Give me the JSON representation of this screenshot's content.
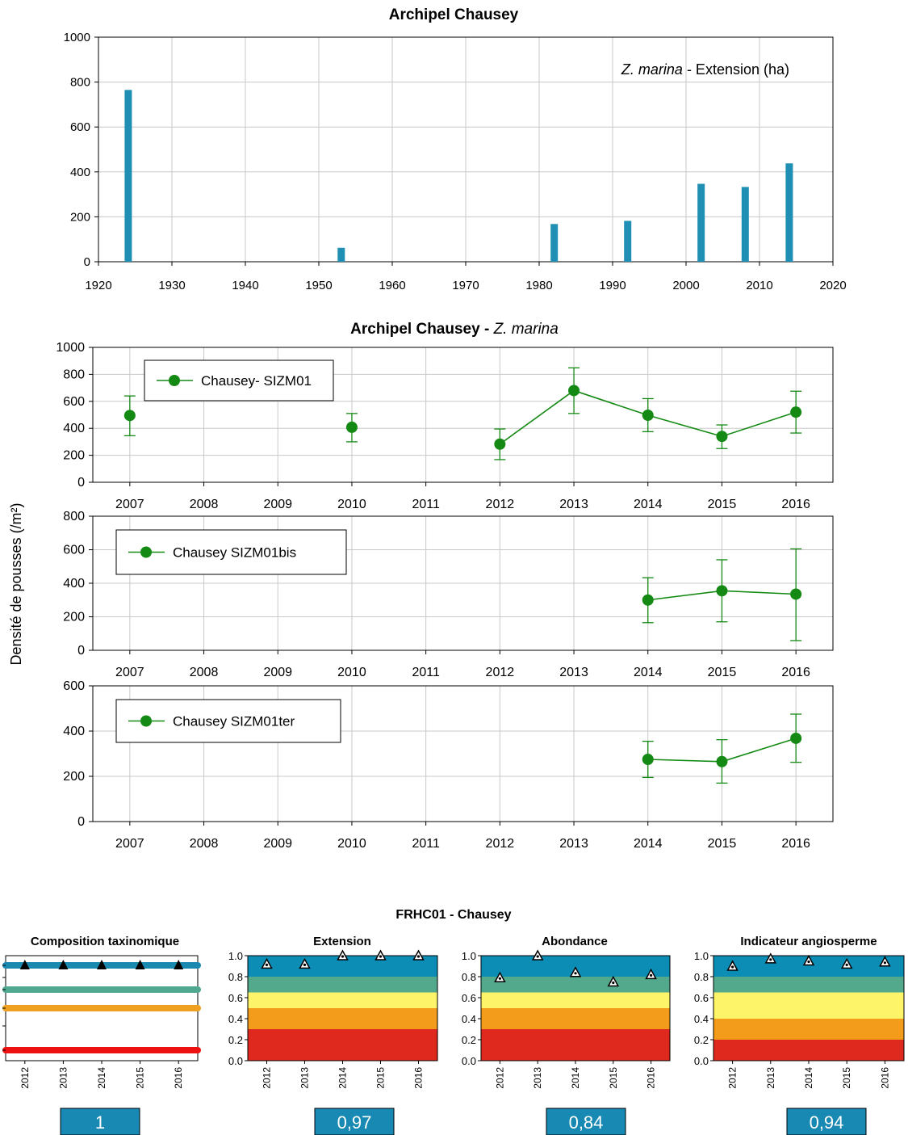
{
  "chart_data": [
    {
      "type": "bar",
      "title": "Archipel Chausey",
      "annotation": {
        "italic": "Z. marina",
        "rest": " - Extension (ha)"
      },
      "x": [
        1924,
        1953,
        1982,
        1992,
        2002,
        2008,
        2014
      ],
      "values": [
        765,
        62,
        168,
        182,
        347,
        333,
        438
      ],
      "xlim": [
        1920,
        2020
      ],
      "xticks": [
        1920,
        1930,
        1940,
        1950,
        1960,
        1970,
        1980,
        1990,
        2000,
        2010,
        2020
      ],
      "ylim": [
        0,
        1000
      ],
      "yticks": [
        0,
        200,
        400,
        600,
        800,
        1000
      ],
      "grid": true,
      "color": "#1f8fb3"
    },
    {
      "type": "line",
      "title_bold": "Archipel Chausey - ",
      "title_italic": "Z. marina",
      "ylabel": "Densité de pousses (/m²)",
      "xticks": [
        2007,
        2008,
        2009,
        2010,
        2011,
        2012,
        2013,
        2014,
        2015,
        2016
      ],
      "color": "#148a14",
      "panels": [
        {
          "legend": "Chausey- SIZM01",
          "legend_position": "top-left",
          "ylim": [
            0,
            1000
          ],
          "yticks": [
            0,
            200,
            400,
            600,
            800,
            1000
          ],
          "points": [
            {
              "x": 2007,
              "y": 495,
              "lo": 345,
              "hi": 640
            },
            {
              "x": 2010,
              "y": 408,
              "lo": 300,
              "hi": 510
            },
            {
              "x": 2012,
              "y": 283,
              "lo": 168,
              "hi": 395
            },
            {
              "x": 2013,
              "y": 680,
              "lo": 510,
              "hi": 848
            },
            {
              "x": 2014,
              "y": 497,
              "lo": 375,
              "hi": 620
            },
            {
              "x": 2015,
              "y": 340,
              "lo": 250,
              "hi": 425
            },
            {
              "x": 2016,
              "y": 520,
              "lo": 365,
              "hi": 675
            }
          ],
          "segments": [
            [
              2,
              3,
              4,
              5,
              6
            ]
          ]
        },
        {
          "legend": "Chausey SIZM01bis",
          "legend_position": "top-left",
          "ylim": [
            0,
            800
          ],
          "yticks": [
            0,
            200,
            400,
            600,
            800
          ],
          "points": [
            {
              "x": 2014,
              "y": 300,
              "lo": 165,
              "hi": 433
            },
            {
              "x": 2015,
              "y": 355,
              "lo": 170,
              "hi": 540
            },
            {
              "x": 2016,
              "y": 335,
              "lo": 58,
              "hi": 605
            }
          ],
          "segments": [
            [
              0,
              1,
              2
            ]
          ]
        },
        {
          "legend": "Chausey SIZM01ter",
          "legend_position": "top-left",
          "ylim": [
            0,
            600
          ],
          "yticks": [
            0,
            200,
            400,
            600
          ],
          "points": [
            {
              "x": 2014,
              "y": 275,
              "lo": 195,
              "hi": 355
            },
            {
              "x": 2015,
              "y": 265,
              "lo": 170,
              "hi": 362
            },
            {
              "x": 2016,
              "y": 368,
              "lo": 262,
              "hi": 475
            }
          ],
          "segments": [
            [
              0,
              1,
              2
            ]
          ]
        }
      ]
    },
    {
      "type": "scatter",
      "title": "FRHC01 - Chausey",
      "years": [
        "2012",
        "2013",
        "2014",
        "2015",
        "2016"
      ],
      "panels": [
        {
          "title": "Composition taxinomique",
          "kind": "taxo",
          "line_colors": [
            "#1a89b0",
            "#4fa88f",
            "#f0a020",
            "#ee1111"
          ],
          "score": "1"
        },
        {
          "title": "Extension",
          "kind": "bands",
          "values": [
            0.92,
            0.92,
            1.0,
            1.0,
            1.0
          ],
          "score": "0,97"
        },
        {
          "title": "Abondance",
          "kind": "bands",
          "values": [
            0.79,
            1.0,
            0.84,
            0.75,
            0.82
          ],
          "score": "0,84"
        },
        {
          "title": "Indicateur angiosperme",
          "kind": "bands",
          "values": [
            0.9,
            0.97,
            0.95,
            0.92,
            0.94
          ],
          "score": "0,94"
        }
      ],
      "yticks": [
        "0.0",
        "0.2",
        "0.4",
        "0.6",
        "0.8",
        "1.0"
      ],
      "band_colors": [
        "#e0291e",
        "#f39c1b",
        "#fdf46a",
        "#53a98c",
        "#0b8db6"
      ],
      "score_color": "#1789b2"
    }
  ]
}
